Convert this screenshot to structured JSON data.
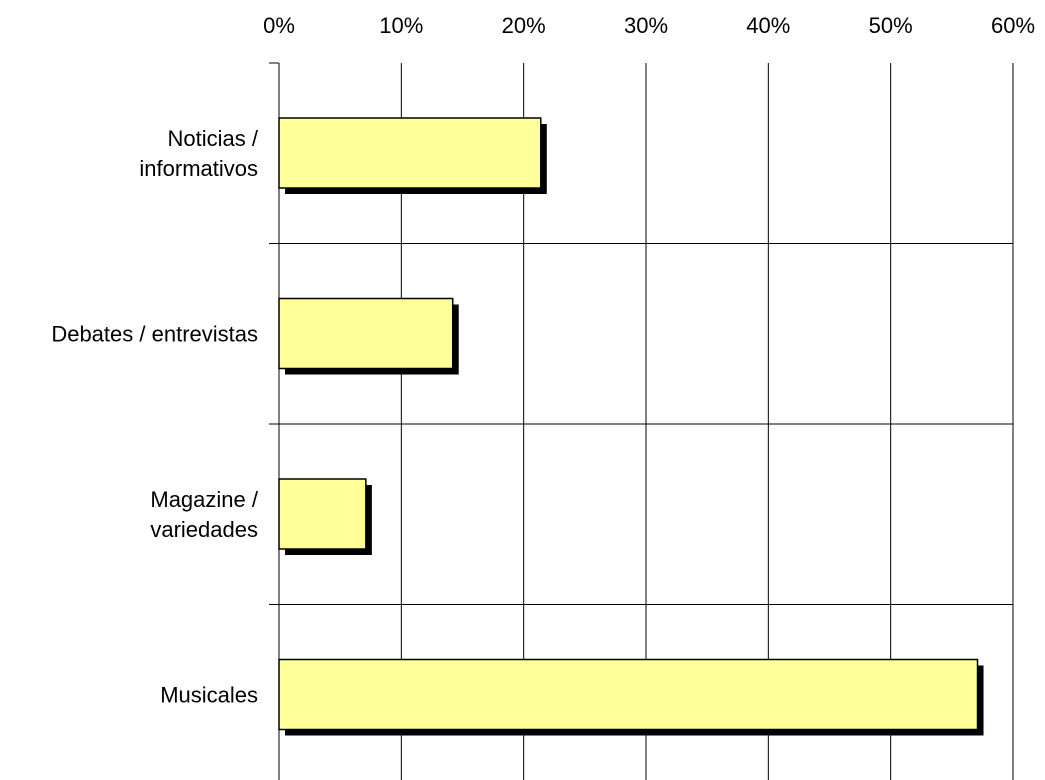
{
  "chart_data": {
    "type": "bar",
    "orientation": "horizontal",
    "title": "",
    "xlabel": "",
    "ylabel": "",
    "categories": [
      [
        "Noticias /",
        "informativos"
      ],
      [
        "Debates / entrevistas"
      ],
      [
        "Magazine /",
        "variedades"
      ],
      [
        "Musicales"
      ]
    ],
    "values": [
      21.4,
      14.2,
      7.1,
      57.1
    ],
    "xlim": [
      0,
      60
    ],
    "x_ticks": [
      0,
      10,
      20,
      30,
      40,
      50,
      60
    ],
    "x_tick_labels": [
      "0%",
      "10%",
      "20%",
      "30%",
      "40%",
      "50%",
      "60%"
    ],
    "x_axis_position": "top",
    "grid": true,
    "legend": "none",
    "colors": {
      "bar_fill": "#ffff99",
      "bar_stroke": "#000000",
      "bar_shadow": "#000000",
      "grid": "#000000",
      "background": "#ffffff"
    }
  }
}
